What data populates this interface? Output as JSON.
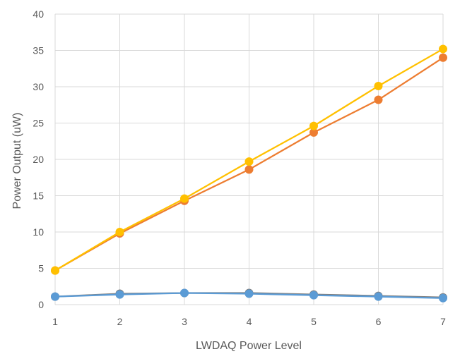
{
  "chart_data": {
    "type": "line",
    "title": "",
    "xlabel": "LWDAQ Power Level",
    "ylabel": "Power Output (uW)",
    "x": [
      1,
      2,
      3,
      4,
      5,
      6,
      7
    ],
    "xlim": [
      1,
      7
    ],
    "ylim": [
      0,
      40
    ],
    "x_ticks": [
      "1",
      "2",
      "3",
      "4",
      "5",
      "6",
      "7"
    ],
    "y_ticks": [
      "0",
      "5",
      "10",
      "15",
      "20",
      "25",
      "30",
      "35",
      "40"
    ],
    "grid": true,
    "legend": "none",
    "series": [
      {
        "color": "#ED7D31",
        "values": [
          4.7,
          9.8,
          14.3,
          18.6,
          23.7,
          28.2,
          34.0
        ]
      },
      {
        "color": "#FFC000",
        "values": [
          4.7,
          10.0,
          14.6,
          19.7,
          24.6,
          30.1,
          35.2
        ]
      },
      {
        "color": "#7F7F7F",
        "values": [
          1.1,
          1.5,
          1.6,
          1.6,
          1.4,
          1.2,
          1.0
        ]
      },
      {
        "color": "#5B9BD5",
        "values": [
          1.1,
          1.4,
          1.6,
          1.5,
          1.3,
          1.1,
          0.9
        ]
      }
    ]
  }
}
